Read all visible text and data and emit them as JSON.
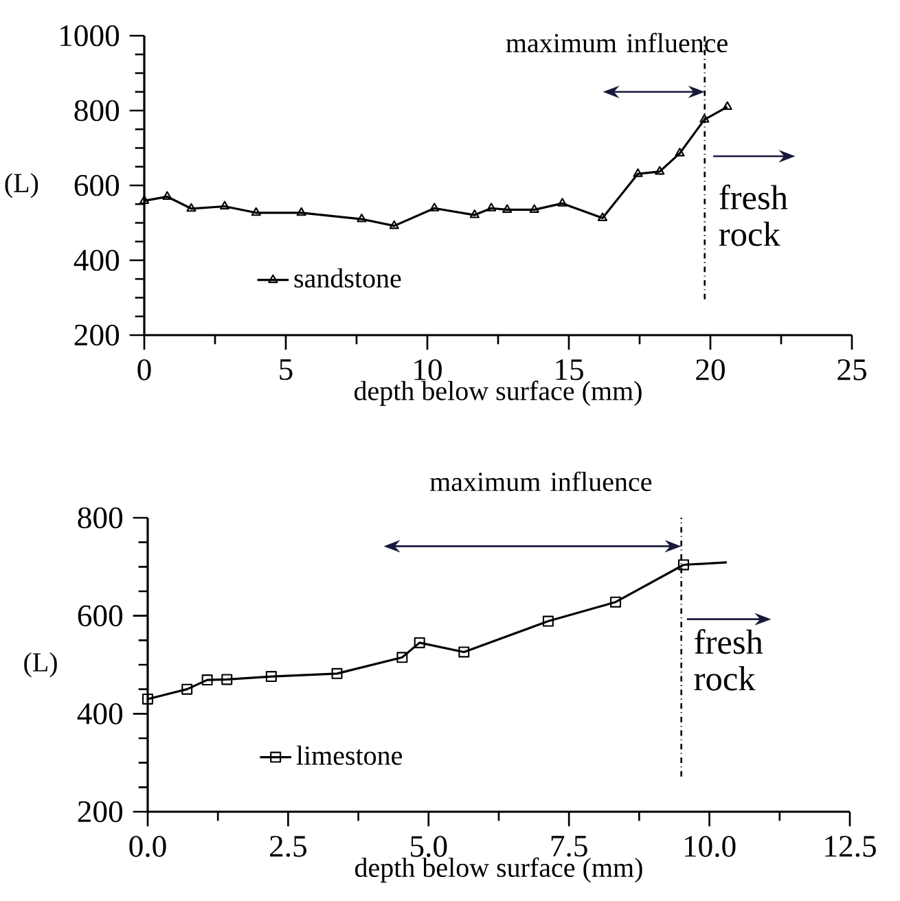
{
  "chart_data": [
    {
      "type": "line",
      "xlabel": "depth below surface (mm)",
      "ylabel": "(L)",
      "x": [
        0,
        0.81,
        1.66,
        2.84,
        3.95,
        5.55,
        7.68,
        8.83,
        10.25,
        11.67,
        12.26,
        12.82,
        13.78,
        14.77,
        16.19,
        17.44,
        18.21,
        18.92,
        19.79,
        20.6
      ],
      "series": [
        {
          "name": "sandstone",
          "color": "#000000",
          "values": [
            559,
            570,
            538,
            544,
            527,
            527,
            510,
            492,
            539,
            521,
            539,
            535,
            535,
            552,
            513,
            631,
            637,
            686,
            776,
            810
          ]
        }
      ],
      "xlim": [
        0,
        25
      ],
      "ylim": [
        200,
        1000
      ],
      "xticks": [
        0,
        5,
        10,
        15,
        20,
        25
      ],
      "yticks": [
        200,
        400,
        600,
        800,
        1000
      ],
      "marker": "triangle",
      "legend": "bottom left",
      "ref_lines": [
        {
          "axis": "x",
          "value": 19.8,
          "line_style": "dashed"
        }
      ],
      "annotations": [
        "maximum influence",
        "fresh rock"
      ]
    },
    {
      "type": "line",
      "xlabel": "depth below surface (mm)",
      "ylabel": "(L)",
      "x": [
        0,
        0.7,
        1.06,
        1.41,
        2.2,
        3.37,
        4.53,
        4.84,
        5.63,
        7.13,
        8.33,
        9.54
      ],
      "series": [
        {
          "name": "limestone",
          "color": "#000000",
          "values": [
            430,
            450,
            469,
            470,
            476,
            482,
            515,
            545,
            526,
            589,
            628,
            704
          ]
        },
        {
          "color": "#000000",
          "x": [
            9.54,
            10.31
          ],
          "values": [
            704,
            709
          ],
          "marker": "none"
        }
      ],
      "xlim": [
        0,
        12.5
      ],
      "ylim": [
        200,
        800
      ],
      "xticks": [
        {
          "value": 0,
          "label": "0.0"
        },
        2.5,
        {
          "value": 5,
          "label": "5.0"
        },
        7.5,
        {
          "value": 10,
          "label": "10.0"
        },
        12.5
      ],
      "yticks": [
        200,
        400,
        600,
        800
      ],
      "marker": "square",
      "legend": "bottom left",
      "ref_lines": [
        {
          "axis": "x",
          "value": 9.5,
          "line_style": "dashed"
        }
      ],
      "annotations": [
        "maximum influence",
        "fresh rock"
      ]
    }
  ]
}
